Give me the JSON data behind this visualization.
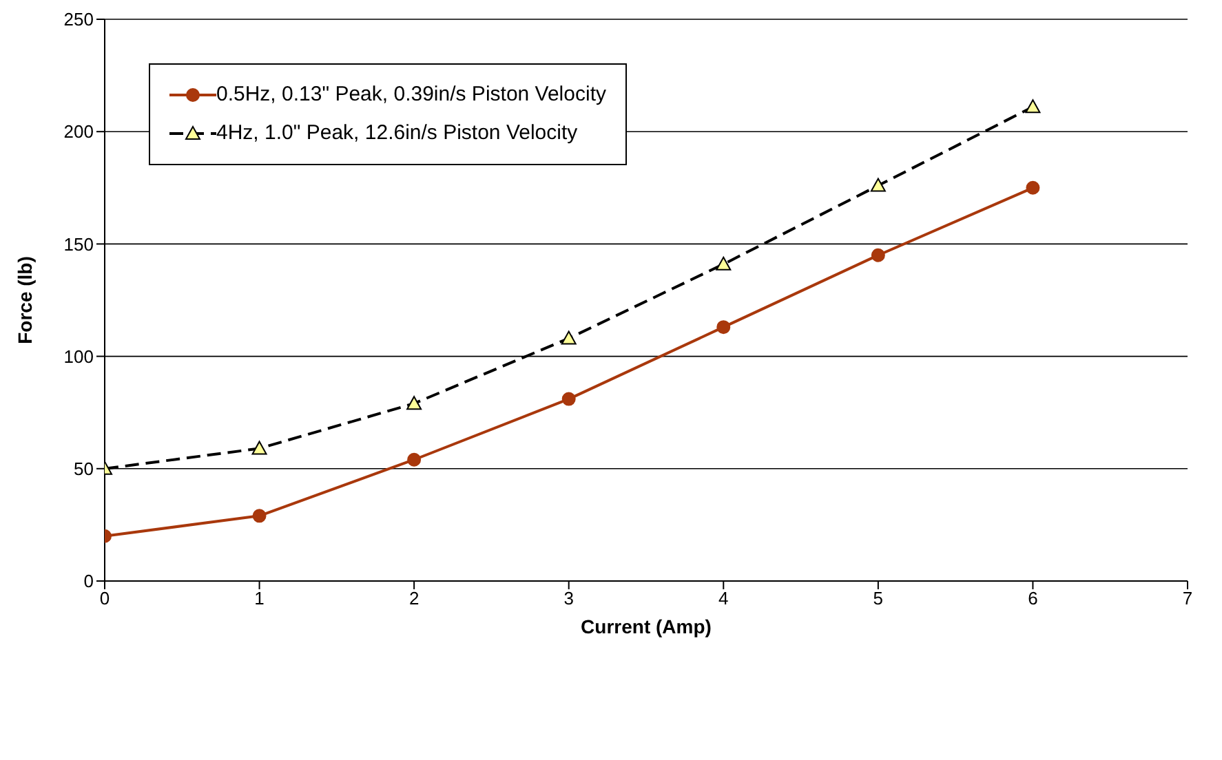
{
  "chart_data": {
    "type": "line",
    "xlabel": "Current (Amp)",
    "ylabel": "Force (lb)",
    "x": [
      0,
      1,
      2,
      3,
      4,
      5,
      6
    ],
    "series": [
      {
        "name": "0.5Hz, 0.13\" Peak, 0.39in/s Piston Velocity",
        "color": "#a9380c",
        "marker": "circle",
        "line_style": "solid",
        "values": [
          20,
          29,
          54,
          81,
          113,
          145,
          175
        ]
      },
      {
        "name": "4Hz, 1.0\" Peak, 12.6in/s Piston Velocity",
        "color": "#000000",
        "marker": "triangle",
        "line_style": "dashed",
        "values": [
          50,
          59,
          79,
          108,
          141,
          176,
          211
        ]
      }
    ],
    "xlim": [
      0,
      7
    ],
    "xticks": [
      0,
      1,
      2,
      3,
      4,
      5,
      6,
      7
    ],
    "ylim": [
      0,
      250
    ],
    "yticks": [
      0,
      50,
      100,
      150,
      200,
      250
    ],
    "grid": "y",
    "legend": "top left"
  }
}
